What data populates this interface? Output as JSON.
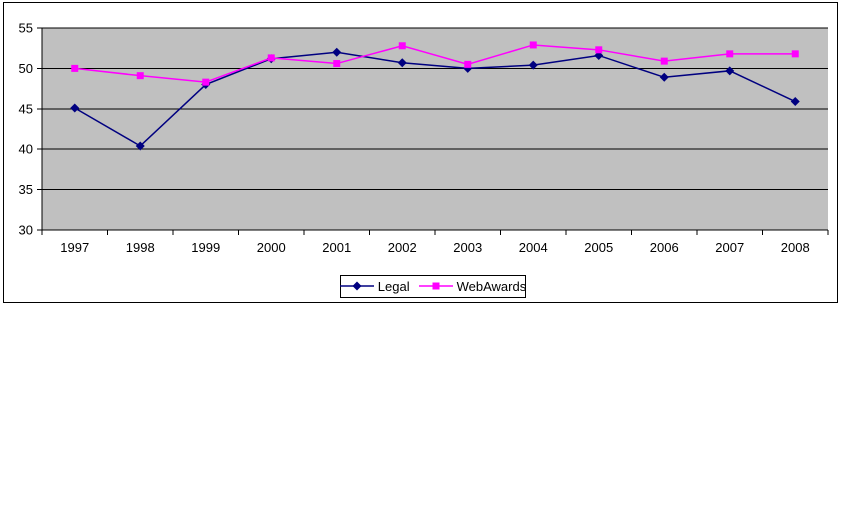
{
  "chart_data": {
    "type": "line",
    "title": "",
    "xlabel": "",
    "ylabel": "",
    "categories": [
      "1997",
      "1998",
      "1999",
      "2000",
      "2001",
      "2002",
      "2003",
      "2004",
      "2005",
      "2006",
      "2007",
      "2008"
    ],
    "series": [
      {
        "name": "Legal",
        "color": "#000080",
        "marker": "diamond",
        "values": [
          45.1,
          40.4,
          48.0,
          51.2,
          52.0,
          50.7,
          50.0,
          50.4,
          51.6,
          48.9,
          49.7,
          45.9
        ]
      },
      {
        "name": "WebAwards",
        "color": "#FF00FF",
        "marker": "square",
        "values": [
          50.0,
          49.1,
          48.3,
          51.3,
          50.6,
          52.8,
          50.5,
          52.9,
          52.3,
          50.9,
          51.8,
          51.8
        ]
      }
    ],
    "ylim": [
      30,
      55
    ],
    "yticks": [
      30,
      35,
      40,
      45,
      50,
      55
    ],
    "grid": true,
    "legend_position": "bottom-center",
    "plot_background": "#C0C0C0",
    "gridline_color": "#000000",
    "axis_color": "#000000",
    "chart_background": "#FFFFFF",
    "chart_border_color": "#000000"
  }
}
